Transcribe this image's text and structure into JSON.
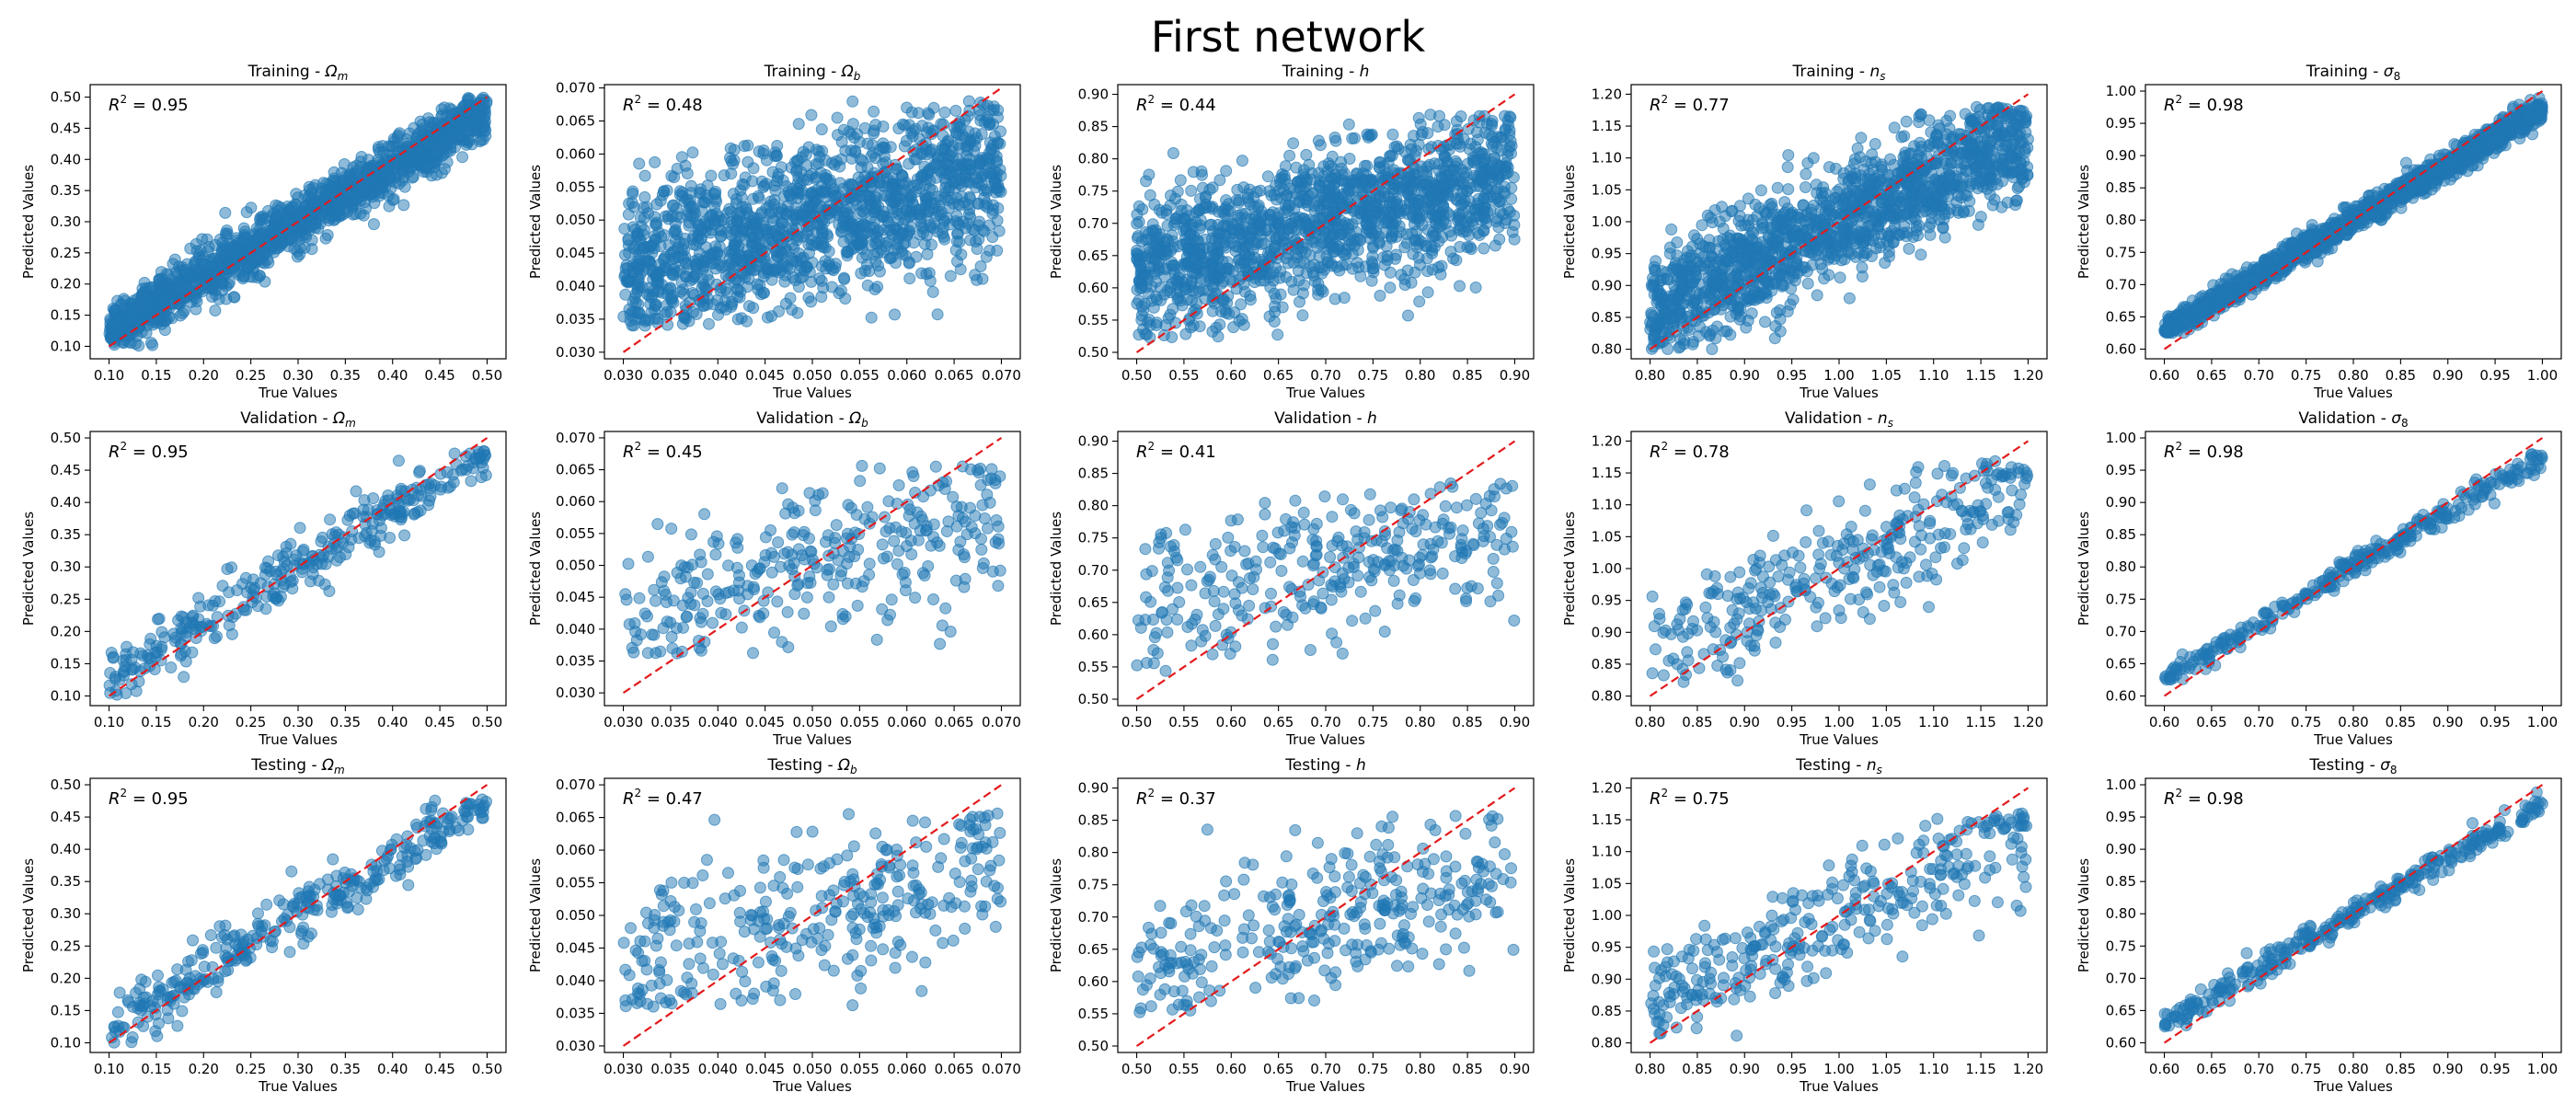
{
  "figure": {
    "title": "First network"
  },
  "chart_data": [
    {
      "type": "scatter",
      "row": "Training",
      "title": "Training - Ωm",
      "title_text": "Training - ",
      "param_main": "Ω",
      "param_sub": "m",
      "xlabel": "True Values",
      "ylabel": "Predicted Values",
      "r2": "0.95",
      "xlim": [
        0.08,
        0.52
      ],
      "ylim": [
        0.08,
        0.52
      ],
      "xticks": [
        0.1,
        0.15,
        0.2,
        0.25,
        0.3,
        0.35,
        0.4,
        0.45,
        0.5
      ],
      "yticks": [
        0.1,
        0.15,
        0.2,
        0.25,
        0.3,
        0.35,
        0.4,
        0.45,
        0.5
      ],
      "decimals": 2,
      "reference_line": [
        0.1,
        0.5
      ],
      "n_points": 1500,
      "fit": {
        "x_range": [
          0.1,
          0.5
        ],
        "slope": 0.88,
        "pivot": 0.3,
        "offset": 0.0,
        "noise": 0.022,
        "y_min": 0.1,
        "y_max": 0.5
      }
    },
    {
      "type": "scatter",
      "row": "Training",
      "title": "Training - Ωb",
      "title_text": "Training - ",
      "param_main": "Ω",
      "param_sub": "b",
      "xlabel": "True Values",
      "ylabel": "Predicted Values",
      "r2": "0.48",
      "xlim": [
        0.028,
        0.072
      ],
      "ylim": [
        0.029,
        0.0705
      ],
      "xticks": [
        0.03,
        0.035,
        0.04,
        0.045,
        0.05,
        0.055,
        0.06,
        0.065,
        0.07
      ],
      "yticks": [
        0.03,
        0.035,
        0.04,
        0.045,
        0.05,
        0.055,
        0.06,
        0.065,
        0.07
      ],
      "decimals": 3,
      "reference_line": [
        0.03,
        0.07
      ],
      "n_points": 1500,
      "fit": {
        "x_range": [
          0.03,
          0.07
        ],
        "slope": 0.4,
        "pivot": 0.05,
        "offset": 0.0,
        "noise": 0.0062,
        "y_min": 0.034,
        "y_max": 0.068
      }
    },
    {
      "type": "scatter",
      "row": "Training",
      "title": "Training - h",
      "title_text": "Training - ",
      "param_main": "h",
      "param_sub": "",
      "xlabel": "True Values",
      "ylabel": "Predicted Values",
      "r2": "0.44",
      "xlim": [
        0.48,
        0.92
      ],
      "ylim": [
        0.49,
        0.915
      ],
      "xticks": [
        0.5,
        0.55,
        0.6,
        0.65,
        0.7,
        0.75,
        0.8,
        0.85,
        0.9
      ],
      "yticks": [
        0.5,
        0.55,
        0.6,
        0.65,
        0.7,
        0.75,
        0.8,
        0.85,
        0.9
      ],
      "decimals": 2,
      "reference_line": [
        0.5,
        0.9
      ],
      "n_points": 1500,
      "fit": {
        "x_range": [
          0.5,
          0.9
        ],
        "slope": 0.36,
        "pivot": 0.7,
        "offset": 0.0,
        "noise": 0.058,
        "y_min": 0.52,
        "y_max": 0.87
      }
    },
    {
      "type": "scatter",
      "row": "Training",
      "title": "Training - ns",
      "title_text": "Training - ",
      "param_main": "n",
      "param_sub": "s",
      "xlabel": "True Values",
      "ylabel": "Predicted Values",
      "r2": "0.77",
      "xlim": [
        0.78,
        1.22
      ],
      "ylim": [
        0.785,
        1.215
      ],
      "xticks": [
        0.8,
        0.85,
        0.9,
        0.95,
        1.0,
        1.05,
        1.1,
        1.15,
        1.2
      ],
      "yticks": [
        0.8,
        0.85,
        0.9,
        0.95,
        1.0,
        1.05,
        1.1,
        1.15,
        1.2
      ],
      "decimals": 2,
      "reference_line": [
        0.8,
        1.2
      ],
      "n_points": 1500,
      "fit": {
        "x_range": [
          0.8,
          1.2
        ],
        "slope": 0.68,
        "pivot": 1.0,
        "offset": 0.0,
        "noise": 0.045,
        "y_min": 0.8,
        "y_max": 1.18
      }
    },
    {
      "type": "scatter",
      "row": "Training",
      "title": "Training - σ8",
      "title_text": "Training - ",
      "param_main": "σ",
      "param_sub": "8",
      "xlabel": "True Values",
      "ylabel": "Predicted Values",
      "r2": "0.98",
      "xlim": [
        0.58,
        1.02
      ],
      "ylim": [
        0.585,
        1.01
      ],
      "xticks": [
        0.6,
        0.65,
        0.7,
        0.75,
        0.8,
        0.85,
        0.9,
        0.95,
        1.0
      ],
      "yticks": [
        0.6,
        0.65,
        0.7,
        0.75,
        0.8,
        0.85,
        0.9,
        0.95,
        1.0
      ],
      "decimals": 2,
      "reference_line": [
        0.6,
        1.0
      ],
      "n_points": 1500,
      "fit": {
        "x_range": [
          0.6,
          1.0
        ],
        "slope": 0.86,
        "pivot": 0.8,
        "offset": 0.0,
        "noise": 0.01,
        "y_min": 0.625,
        "y_max": 0.99
      }
    },
    {
      "type": "scatter",
      "row": "Validation",
      "title": "Validation - Ωm",
      "title_text": "Validation - ",
      "param_main": "Ω",
      "param_sub": "m",
      "xlabel": "True Values",
      "ylabel": "Predicted Values",
      "r2": "0.95",
      "xlim": [
        0.08,
        0.52
      ],
      "ylim": [
        0.085,
        0.51
      ],
      "xticks": [
        0.1,
        0.15,
        0.2,
        0.25,
        0.3,
        0.35,
        0.4,
        0.45,
        0.5
      ],
      "yticks": [
        0.1,
        0.15,
        0.2,
        0.25,
        0.3,
        0.35,
        0.4,
        0.45,
        0.5
      ],
      "decimals": 2,
      "reference_line": [
        0.1,
        0.5
      ],
      "n_points": 320,
      "fit": {
        "x_range": [
          0.1,
          0.5
        ],
        "slope": 0.88,
        "pivot": 0.3,
        "offset": 0.0,
        "noise": 0.022,
        "y_min": 0.1,
        "y_max": 0.48
      }
    },
    {
      "type": "scatter",
      "row": "Validation",
      "title": "Validation - Ωb",
      "title_text": "Validation - ",
      "param_main": "Ω",
      "param_sub": "b",
      "xlabel": "True Values",
      "ylabel": "Predicted Values",
      "r2": "0.45",
      "xlim": [
        0.028,
        0.072
      ],
      "ylim": [
        0.028,
        0.071
      ],
      "xticks": [
        0.03,
        0.035,
        0.04,
        0.045,
        0.05,
        0.055,
        0.06,
        0.065,
        0.07
      ],
      "yticks": [
        0.03,
        0.035,
        0.04,
        0.045,
        0.05,
        0.055,
        0.06,
        0.065,
        0.07
      ],
      "decimals": 3,
      "reference_line": [
        0.03,
        0.07
      ],
      "n_points": 320,
      "fit": {
        "x_range": [
          0.03,
          0.07
        ],
        "slope": 0.4,
        "pivot": 0.05,
        "offset": 0.0,
        "noise": 0.0062,
        "y_min": 0.036,
        "y_max": 0.066
      }
    },
    {
      "type": "scatter",
      "row": "Validation",
      "title": "Validation - h",
      "title_text": "Validation - ",
      "param_main": "h",
      "param_sub": "",
      "xlabel": "True Values",
      "ylabel": "Predicted Values",
      "r2": "0.41",
      "xlim": [
        0.48,
        0.92
      ],
      "ylim": [
        0.49,
        0.915
      ],
      "xticks": [
        0.5,
        0.55,
        0.6,
        0.65,
        0.7,
        0.75,
        0.8,
        0.85,
        0.9
      ],
      "yticks": [
        0.5,
        0.55,
        0.6,
        0.65,
        0.7,
        0.75,
        0.8,
        0.85,
        0.9
      ],
      "decimals": 2,
      "reference_line": [
        0.5,
        0.9
      ],
      "n_points": 320,
      "fit": {
        "x_range": [
          0.5,
          0.9
        ],
        "slope": 0.36,
        "pivot": 0.7,
        "offset": 0.0,
        "noise": 0.058,
        "y_min": 0.54,
        "y_max": 0.84
      }
    },
    {
      "type": "scatter",
      "row": "Validation",
      "title": "Validation - ns",
      "title_text": "Validation - ",
      "param_main": "n",
      "param_sub": "s",
      "xlabel": "True Values",
      "ylabel": "Predicted Values",
      "r2": "0.78",
      "xlim": [
        0.78,
        1.22
      ],
      "ylim": [
        0.785,
        1.215
      ],
      "xticks": [
        0.8,
        0.85,
        0.9,
        0.95,
        1.0,
        1.05,
        1.1,
        1.15,
        1.2
      ],
      "yticks": [
        0.8,
        0.85,
        0.9,
        0.95,
        1.0,
        1.05,
        1.1,
        1.15,
        1.2
      ],
      "decimals": 2,
      "reference_line": [
        0.8,
        1.2
      ],
      "n_points": 320,
      "fit": {
        "x_range": [
          0.8,
          1.2
        ],
        "slope": 0.68,
        "pivot": 1.0,
        "offset": 0.0,
        "noise": 0.045,
        "y_min": 0.81,
        "y_max": 1.17
      }
    },
    {
      "type": "scatter",
      "row": "Validation",
      "title": "Validation - σ8",
      "title_text": "Validation - ",
      "param_main": "σ",
      "param_sub": "8",
      "xlabel": "True Values",
      "ylabel": "Predicted Values",
      "r2": "0.98",
      "xlim": [
        0.58,
        1.02
      ],
      "ylim": [
        0.585,
        1.01
      ],
      "xticks": [
        0.6,
        0.65,
        0.7,
        0.75,
        0.8,
        0.85,
        0.9,
        0.95,
        1.0
      ],
      "yticks": [
        0.6,
        0.65,
        0.7,
        0.75,
        0.8,
        0.85,
        0.9,
        0.95,
        1.0
      ],
      "decimals": 2,
      "reference_line": [
        0.6,
        1.0
      ],
      "n_points": 320,
      "fit": {
        "x_range": [
          0.6,
          1.0
        ],
        "slope": 0.86,
        "pivot": 0.8,
        "offset": 0.0,
        "noise": 0.01,
        "y_min": 0.625,
        "y_max": 0.975
      }
    },
    {
      "type": "scatter",
      "row": "Testing",
      "title": "Testing - Ωm",
      "title_text": "Testing - ",
      "param_main": "Ω",
      "param_sub": "m",
      "xlabel": "True Values",
      "ylabel": "Predicted Values",
      "r2": "0.95",
      "xlim": [
        0.08,
        0.52
      ],
      "ylim": [
        0.085,
        0.51
      ],
      "xticks": [
        0.1,
        0.15,
        0.2,
        0.25,
        0.3,
        0.35,
        0.4,
        0.45,
        0.5
      ],
      "yticks": [
        0.1,
        0.15,
        0.2,
        0.25,
        0.3,
        0.35,
        0.4,
        0.45,
        0.5
      ],
      "decimals": 2,
      "reference_line": [
        0.1,
        0.5
      ],
      "n_points": 320,
      "fit": {
        "x_range": [
          0.1,
          0.5
        ],
        "slope": 0.88,
        "pivot": 0.3,
        "offset": 0.0,
        "noise": 0.022,
        "y_min": 0.1,
        "y_max": 0.48
      }
    },
    {
      "type": "scatter",
      "row": "Testing",
      "title": "Testing - Ωb",
      "title_text": "Testing - ",
      "param_main": "Ω",
      "param_sub": "b",
      "xlabel": "True Values",
      "ylabel": "Predicted Values",
      "r2": "0.47",
      "xlim": [
        0.028,
        0.072
      ],
      "ylim": [
        0.029,
        0.071
      ],
      "xticks": [
        0.03,
        0.035,
        0.04,
        0.045,
        0.05,
        0.055,
        0.06,
        0.065,
        0.07
      ],
      "yticks": [
        0.03,
        0.035,
        0.04,
        0.045,
        0.05,
        0.055,
        0.06,
        0.065,
        0.07
      ],
      "decimals": 3,
      "reference_line": [
        0.03,
        0.07
      ],
      "n_points": 320,
      "fit": {
        "x_range": [
          0.03,
          0.07
        ],
        "slope": 0.4,
        "pivot": 0.05,
        "offset": 0.0,
        "noise": 0.0062,
        "y_min": 0.036,
        "y_max": 0.066
      }
    },
    {
      "type": "scatter",
      "row": "Testing",
      "title": "Testing - h",
      "title_text": "Testing - ",
      "param_main": "h",
      "param_sub": "",
      "xlabel": "True Values",
      "ylabel": "Predicted Values",
      "r2": "0.37",
      "xlim": [
        0.48,
        0.92
      ],
      "ylim": [
        0.49,
        0.915
      ],
      "xticks": [
        0.5,
        0.55,
        0.6,
        0.65,
        0.7,
        0.75,
        0.8,
        0.85,
        0.9
      ],
      "yticks": [
        0.5,
        0.55,
        0.6,
        0.65,
        0.7,
        0.75,
        0.8,
        0.85,
        0.9
      ],
      "decimals": 2,
      "reference_line": [
        0.5,
        0.9
      ],
      "n_points": 320,
      "fit": {
        "x_range": [
          0.5,
          0.9
        ],
        "slope": 0.36,
        "pivot": 0.7,
        "offset": 0.0,
        "noise": 0.058,
        "y_min": 0.55,
        "y_max": 0.86
      }
    },
    {
      "type": "scatter",
      "row": "Testing",
      "title": "Testing - ns",
      "title_text": "Testing - ",
      "param_main": "n",
      "param_sub": "s",
      "xlabel": "True Values",
      "ylabel": "Predicted Values",
      "r2": "0.75",
      "xlim": [
        0.78,
        1.22
      ],
      "ylim": [
        0.785,
        1.215
      ],
      "xticks": [
        0.8,
        0.85,
        0.9,
        0.95,
        1.0,
        1.05,
        1.1,
        1.15,
        1.2
      ],
      "yticks": [
        0.8,
        0.85,
        0.9,
        0.95,
        1.0,
        1.05,
        1.1,
        1.15,
        1.2
      ],
      "decimals": 2,
      "reference_line": [
        0.8,
        1.2
      ],
      "n_points": 320,
      "fit": {
        "x_range": [
          0.8,
          1.2
        ],
        "slope": 0.68,
        "pivot": 1.0,
        "offset": 0.0,
        "noise": 0.045,
        "y_min": 0.8,
        "y_max": 1.16
      }
    },
    {
      "type": "scatter",
      "row": "Testing",
      "title": "Testing - σ8",
      "title_text": "Testing - ",
      "param_main": "σ",
      "param_sub": "8",
      "xlabel": "True Values",
      "ylabel": "Predicted Values",
      "r2": "0.98",
      "xlim": [
        0.58,
        1.02
      ],
      "ylim": [
        0.585,
        1.01
      ],
      "xticks": [
        0.6,
        0.65,
        0.7,
        0.75,
        0.8,
        0.85,
        0.9,
        0.95,
        1.0
      ],
      "yticks": [
        0.6,
        0.65,
        0.7,
        0.75,
        0.8,
        0.85,
        0.9,
        0.95,
        1.0
      ],
      "decimals": 2,
      "reference_line": [
        0.6,
        1.0
      ],
      "n_points": 320,
      "fit": {
        "x_range": [
          0.6,
          1.0
        ],
        "slope": 0.86,
        "pivot": 0.8,
        "offset": 0.0,
        "noise": 0.01,
        "y_min": 0.625,
        "y_max": 0.99
      }
    }
  ]
}
